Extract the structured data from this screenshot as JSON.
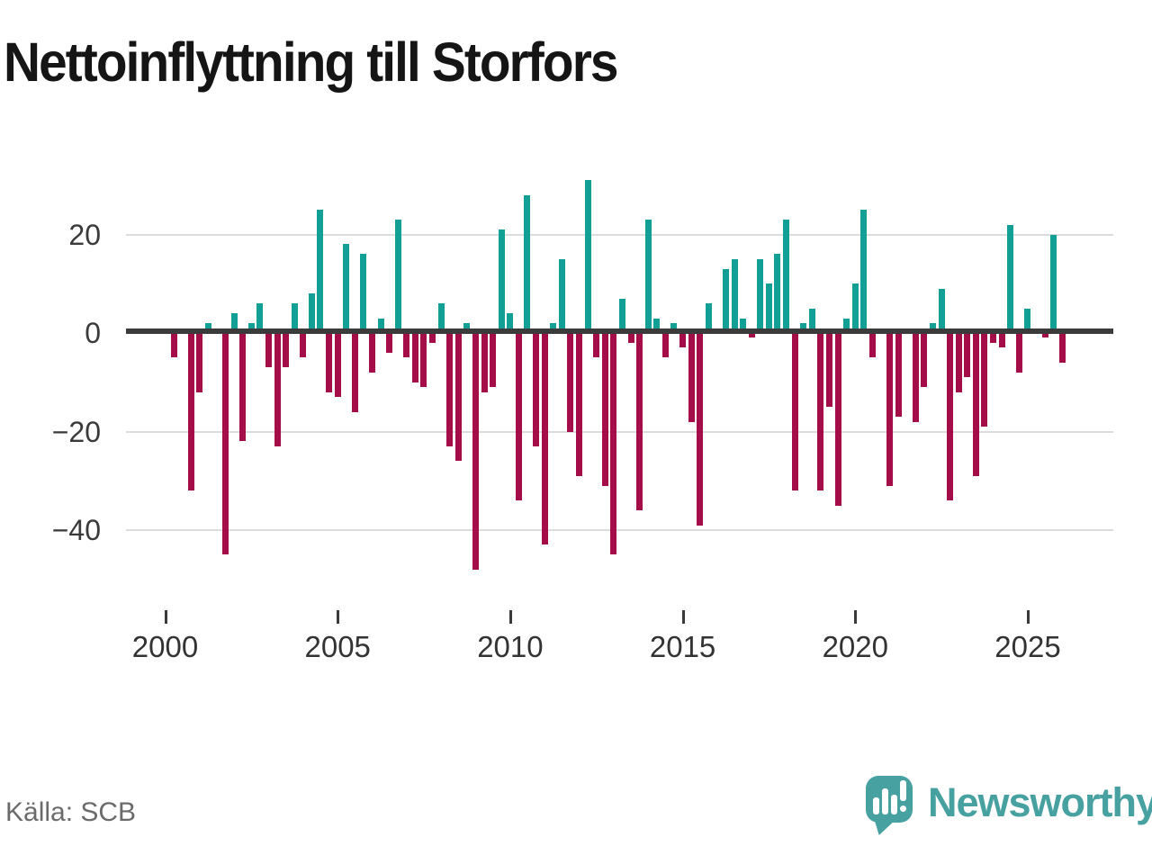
{
  "title": "Nettoinflyttning till Storfors",
  "source": "Källa: SCB",
  "brand": {
    "name": "Newsworthy"
  },
  "colors": {
    "positive": "#12a096",
    "negative": "#a50d48",
    "zero_axis": "#3b3b3b",
    "gridline": "#dcdcdc",
    "tick_label": "#333333",
    "source_text": "#6b6b6b",
    "brand_teal": "#46a1a0",
    "title_text": "#151515"
  },
  "chart_data": {
    "type": "bar",
    "title": "Nettoinflyttning till Storfors",
    "frequency": "quarterly",
    "x_start": "2000-Q1",
    "x_end": "2025-Q4",
    "xlabel": "",
    "ylabel": "",
    "ylim": [
      -50,
      33
    ],
    "grid": true,
    "legend_position": "none",
    "yticks": [
      {
        "value": 20,
        "label": "20"
      },
      {
        "value": 0,
        "label": "0"
      },
      {
        "value": -20,
        "label": "−20"
      },
      {
        "value": -40,
        "label": "−40"
      }
    ],
    "xticks": [
      {
        "year": 2000,
        "label": "2000"
      },
      {
        "year": 2005,
        "label": "2005"
      },
      {
        "year": 2010,
        "label": "2010"
      },
      {
        "year": 2015,
        "label": "2015"
      },
      {
        "year": 2020,
        "label": "2020"
      },
      {
        "year": 2025,
        "label": "2025"
      }
    ],
    "series": [
      {
        "name": "Nettoinflyttning",
        "by_year": [
          {
            "year": 2000,
            "values": [
              -5,
              0,
              -32,
              -12
            ]
          },
          {
            "year": 2001,
            "values": [
              2,
              1,
              -45,
              4
            ]
          },
          {
            "year": 2002,
            "values": [
              -22,
              2,
              6,
              -7
            ]
          },
          {
            "year": 2003,
            "values": [
              -23,
              -7,
              6,
              -5
            ]
          },
          {
            "year": 2004,
            "values": [
              8,
              25,
              -12,
              -13
            ]
          },
          {
            "year": 2005,
            "values": [
              18,
              -16,
              16,
              -8
            ]
          },
          {
            "year": 2006,
            "values": [
              3,
              -4,
              23,
              -5
            ]
          },
          {
            "year": 2007,
            "values": [
              -10,
              -11,
              -2,
              6
            ]
          },
          {
            "year": 2008,
            "values": [
              -23,
              -26,
              2,
              -48
            ]
          },
          {
            "year": 2009,
            "values": [
              -12,
              -11,
              21,
              4
            ]
          },
          {
            "year": 2010,
            "values": [
              -34,
              28,
              -23,
              -43
            ]
          },
          {
            "year": 2011,
            "values": [
              2,
              15,
              -20,
              -29
            ]
          },
          {
            "year": 2012,
            "values": [
              31,
              -5,
              -31,
              -45
            ]
          },
          {
            "year": 2013,
            "values": [
              7,
              -2,
              -36,
              23
            ]
          },
          {
            "year": 2014,
            "values": [
              3,
              -5,
              2,
              -3
            ]
          },
          {
            "year": 2015,
            "values": [
              -18,
              -39,
              6,
              1
            ]
          },
          {
            "year": 2016,
            "values": [
              13,
              15,
              3,
              -1
            ]
          },
          {
            "year": 2017,
            "values": [
              15,
              10,
              16,
              23
            ]
          },
          {
            "year": 2018,
            "values": [
              -32,
              2,
              5,
              -32
            ]
          },
          {
            "year": 2019,
            "values": [
              -15,
              -35,
              3,
              10
            ]
          },
          {
            "year": 2020,
            "values": [
              25,
              -5,
              0,
              -31
            ]
          },
          {
            "year": 2021,
            "values": [
              -17,
              0,
              -18,
              -11
            ]
          },
          {
            "year": 2022,
            "values": [
              2,
              9,
              -34,
              -12
            ]
          },
          {
            "year": 2023,
            "values": [
              -9,
              -29,
              -19,
              -2
            ]
          },
          {
            "year": 2024,
            "values": [
              -3,
              22,
              -8,
              5
            ]
          },
          {
            "year": 2025,
            "values": [
              0,
              -1,
              20,
              -6
            ]
          }
        ]
      }
    ]
  }
}
